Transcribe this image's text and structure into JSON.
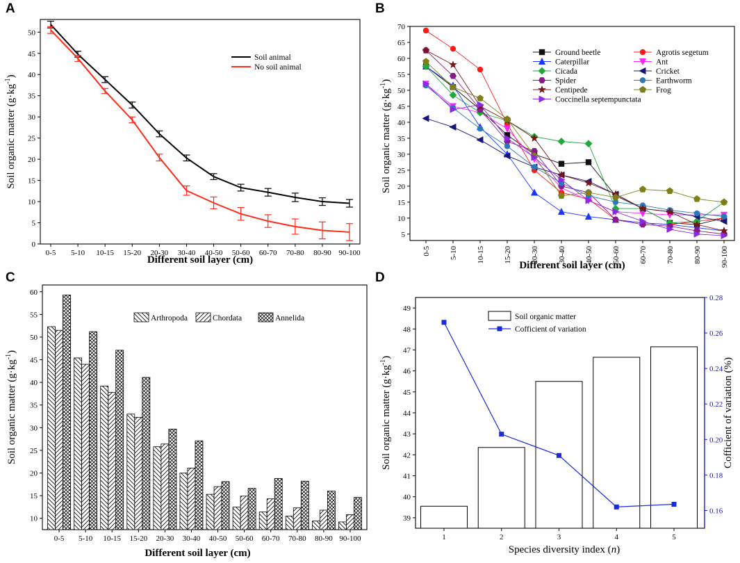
{
  "chart_data": [
    {
      "panel": "A",
      "type": "line",
      "xlabel": "Different soil layer (cm)",
      "ylabel": "Soil organic matter (g·kg⁻¹)",
      "ylim": [
        0,
        53
      ],
      "yticks": [
        0,
        5,
        10,
        15,
        20,
        25,
        30,
        35,
        40,
        45,
        50
      ],
      "categories": [
        "0-5",
        "5-10",
        "10-15",
        "15-20",
        "20-30",
        "30-40",
        "40-50",
        "50-60",
        "60-70",
        "70-80",
        "80-90",
        "90-100"
      ],
      "legend_position": "top-right",
      "series": [
        {
          "name": "Soil animal",
          "color": "#000000",
          "values": [
            51.8,
            44.8,
            38.8,
            32.8,
            26.0,
            20.3,
            15.9,
            13.3,
            12.2,
            11.0,
            10.0,
            9.6
          ],
          "errors": [
            0.8,
            0.7,
            0.7,
            0.7,
            0.7,
            0.7,
            0.7,
            0.8,
            0.9,
            1.0,
            0.9,
            0.9
          ]
        },
        {
          "name": "No soil animal",
          "color": "#ff2a1a",
          "values": [
            50.5,
            43.8,
            36.1,
            29.3,
            20.4,
            12.6,
            9.7,
            7.1,
            5.4,
            4.1,
            3.2,
            2.8
          ],
          "errors": [
            0.8,
            0.7,
            0.6,
            0.7,
            0.8,
            1.1,
            1.4,
            1.5,
            1.5,
            1.8,
            2.0,
            2.0
          ]
        }
      ]
    },
    {
      "panel": "B",
      "type": "line",
      "xlabel": "Different soil layer (cm)",
      "ylabel": "Soil organic matter (g·kg⁻¹)",
      "ylim": [
        3,
        70
      ],
      "yticks": [
        5,
        10,
        15,
        20,
        25,
        30,
        35,
        40,
        45,
        50,
        55,
        60,
        65,
        70
      ],
      "categories": [
        "0-5",
        "5-10",
        "10-15",
        "15-20",
        "20-30",
        "30-40",
        "40-50",
        "50-60",
        "60-70",
        "70-80",
        "80-90",
        "90-100"
      ],
      "legend_position": "top-right",
      "series": [
        {
          "name": "Ground beetle",
          "color": "#111111",
          "marker": "square",
          "values": [
            57.5,
            51,
            44,
            36,
            30,
            27,
            27.5,
            17,
            13,
            8.5,
            8,
            10
          ]
        },
        {
          "name": "Agrotis segetum",
          "color": "#ff1a1a",
          "marker": "circle",
          "values": [
            68.7,
            63,
            56.5,
            39.5,
            25,
            18,
            16,
            9.5,
            8.5,
            8,
            9,
            10
          ]
        },
        {
          "name": "Caterpillar",
          "color": "#1a35ff",
          "marker": "triangle-up",
          "values": [
            57.5,
            51.5,
            38.5,
            30,
            18,
            12,
            10.5,
            9.5,
            8.5,
            8,
            7,
            6
          ]
        },
        {
          "name": "Ant",
          "color": "#ff22ff",
          "marker": "triangle-down",
          "values": [
            52,
            45,
            43,
            38,
            28.5,
            19.5,
            15.5,
            12,
            11.5,
            11,
            11,
            11
          ]
        },
        {
          "name": "Cicada",
          "color": "#1faa3c",
          "marker": "diamond",
          "values": [
            57.5,
            48.5,
            43,
            40.5,
            35.5,
            34,
            33.3,
            13,
            13,
            8.5,
            9,
            15
          ]
        },
        {
          "name": "Cricket",
          "color": "#15157a",
          "marker": "triangle-left",
          "values": [
            41.2,
            38.5,
            34.5,
            29.5,
            26,
            23.5,
            21.5,
            17.5,
            13,
            12,
            10.5,
            9
          ]
        },
        {
          "name": "Spider",
          "color": "#8a1a8a",
          "marker": "hexagon",
          "values": [
            62.5,
            54.5,
            44,
            34,
            31,
            20,
            18,
            9.5,
            8,
            7.5,
            6,
            5
          ]
        },
        {
          "name": "Earthworm",
          "color": "#2a7ab8",
          "marker": "circle",
          "values": [
            51.5,
            44.5,
            38,
            32.5,
            26,
            21,
            17,
            15,
            14,
            12.5,
            11.5,
            10.5
          ]
        },
        {
          "name": "Centipede",
          "color": "#7a1515",
          "marker": "star",
          "values": [
            62.5,
            58,
            45,
            40.5,
            35,
            23.5,
            21,
            17.5,
            13,
            12,
            8,
            6
          ]
        },
        {
          "name": "Frog",
          "color": "#7f7f1a",
          "marker": "pentagon",
          "values": [
            59,
            51,
            47.5,
            41,
            29.5,
            17,
            18,
            16.5,
            19,
            18.5,
            16,
            15
          ]
        },
        {
          "name": "Coccinella septempunctata",
          "color": "#8a2be2",
          "marker": "triangle-right",
          "values": [
            52,
            44,
            45.5,
            35,
            29,
            22,
            15.5,
            12,
            9,
            6.5,
            5,
            4.5
          ]
        }
      ]
    },
    {
      "panel": "C",
      "type": "bar",
      "xlabel": "Different soil layer (cm)",
      "ylabel": "Soil organic matter (g·kg⁻¹)",
      "ylim": [
        7.5,
        61.5
      ],
      "yticks": [
        10,
        15,
        20,
        25,
        30,
        35,
        40,
        45,
        50,
        55,
        60
      ],
      "categories": [
        "0-5",
        "5-10",
        "10-15",
        "15-20",
        "20-30",
        "30-40",
        "40-50",
        "50-60",
        "60-70",
        "70-80",
        "80-90",
        "90-100"
      ],
      "legend_position": "top-right",
      "series": [
        {
          "name": "Arthropoda",
          "pattern": "diag-left",
          "values": [
            52.3,
            45.4,
            39.2,
            33.0,
            25.8,
            20.0,
            15.3,
            12.5,
            11.4,
            10.5,
            9.4,
            9.2
          ]
        },
        {
          "name": "Chordata",
          "pattern": "diag-right",
          "values": [
            51.5,
            44.0,
            37.8,
            32.3,
            26.4,
            21.1,
            17.0,
            14.9,
            14.3,
            12.3,
            11.8,
            10.8
          ]
        },
        {
          "name": "Annelida",
          "pattern": "crosshatch",
          "values": [
            59.3,
            51.2,
            47.1,
            41.1,
            29.7,
            27.1,
            18.1,
            16.6,
            18.8,
            18.2,
            16.0,
            14.6
          ]
        }
      ]
    },
    {
      "panel": "D",
      "type": "bar",
      "xlabel": "Species diversity index (n)",
      "ylabel": "Soil organic matter (g·kg⁻¹)",
      "y2label": "Cofficient of variation (%)",
      "ylim": [
        38.5,
        49.5
      ],
      "yticks": [
        39,
        40,
        41,
        42,
        43,
        44,
        45,
        46,
        47,
        48,
        49
      ],
      "y2lim": [
        0.15,
        0.28
      ],
      "y2ticks": [
        0.16,
        0.18,
        0.2,
        0.22,
        0.24,
        0.26,
        0.28
      ],
      "y2_color": "#1515cc",
      "categories": [
        "1",
        "2",
        "3",
        "4",
        "5"
      ],
      "legend_position": "top-left",
      "series": [
        {
          "name": "Soil organic matter",
          "kind": "bar",
          "values": [
            39.55,
            42.35,
            45.5,
            46.65,
            47.15
          ]
        },
        {
          "name": "Cofficient of variation",
          "kind": "line",
          "axis": "right",
          "color": "#1a2ad6",
          "values": [
            0.266,
            0.203,
            0.191,
            0.162,
            0.1635
          ]
        }
      ]
    }
  ]
}
